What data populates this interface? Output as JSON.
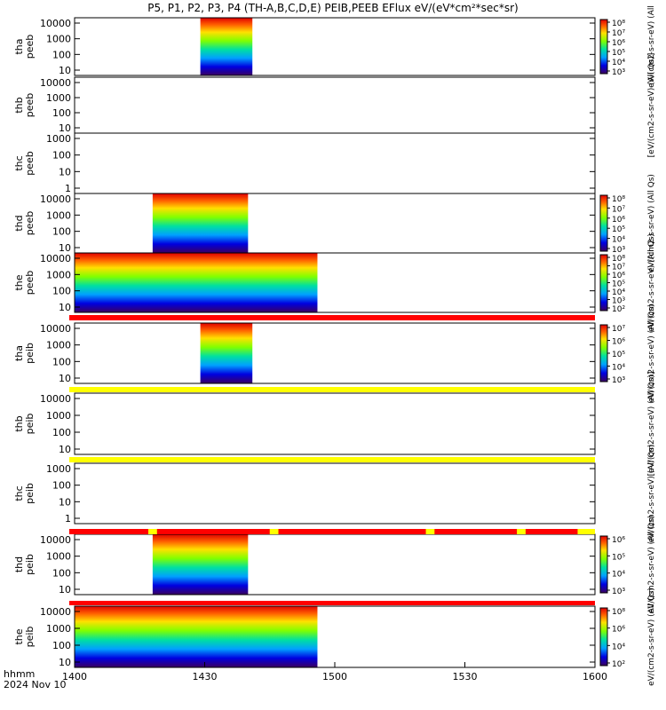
{
  "title": "P5, P1, P2, P3, P4 (TH-A,B,C,D,E) PEIB,PEEB EFlux eV/(eV*cm²*sec*sr)",
  "colors": {
    "background": "#ffffff",
    "flag_red": "#ff0000",
    "flag_yellow": "#ffff00"
  },
  "chart_data": {
    "type": "heatmap",
    "x_axis": {
      "range": [
        "1400",
        "1600"
      ],
      "ticks": [
        "1400",
        "1430",
        "1500",
        "1530",
        "1600"
      ],
      "label_line1": "hhmm",
      "label_line2": "2024 Nov 10"
    },
    "panels": [
      {
        "id": "tha_peeb",
        "ylabel": [
          "tha",
          "peeb"
        ],
        "yticks": [
          "10000",
          "1000",
          "100",
          "10"
        ],
        "coverage": [
          "1429",
          "1441"
        ],
        "colorbar": {
          "label": "eV/(cm2-s-sr-eV) (All",
          "ticks": [
            "10⁸",
            "10⁷",
            "10⁶",
            "10⁵",
            "10⁴",
            "10³"
          ]
        }
      },
      {
        "id": "thb_peeb",
        "ylabel": [
          "thb",
          "peeb"
        ],
        "yticks": [
          "10000",
          "1000",
          "100",
          "10"
        ],
        "coverage": null,
        "colorbar": {
          "label": "[eV/(cm2-s-sr-eV) (All Qs)]",
          "ticks": []
        }
      },
      {
        "id": "thc_peeb",
        "ylabel": [
          "thc",
          "peeb"
        ],
        "yticks": [
          "1000",
          "100",
          "10",
          "1"
        ],
        "coverage": null,
        "colorbar": null
      },
      {
        "id": "thd_peeb",
        "ylabel": [
          "thd",
          "peeb"
        ],
        "yticks": [
          "10000",
          "1000",
          "100",
          "10"
        ],
        "coverage": [
          "1418",
          "1440"
        ],
        "colorbar": {
          "label": "eV/(cm2-s-sr-eV) (All Qs)",
          "ticks": [
            "10⁸",
            "10⁷",
            "10⁶",
            "10⁵",
            "10⁴",
            "10³"
          ]
        }
      },
      {
        "id": "the_peeb",
        "ylabel": [
          "the",
          "peeb"
        ],
        "yticks": [
          "10000",
          "1000",
          "100",
          "10"
        ],
        "coverage": [
          "1400",
          "1456"
        ],
        "colorbar": {
          "label": "eV/(cm2-s-sr-eV) (All Qs)",
          "ticks": [
            "10⁸",
            "10⁷",
            "10⁶",
            "10⁵",
            "10⁴",
            "10³",
            "10²"
          ]
        }
      },
      {
        "id": "tha_peib",
        "ylabel": [
          "tha",
          "peib"
        ],
        "yticks": [
          "10000",
          "1000",
          "100",
          "10"
        ],
        "coverage": [
          "1429",
          "1441"
        ],
        "colorbar": {
          "label": "eV/(cm2-s-sr-eV) (All Qs)",
          "ticks": [
            "10⁷",
            "10⁶",
            "10⁵",
            "10⁴",
            "10³"
          ]
        }
      },
      {
        "id": "thb_peib",
        "ylabel": [
          "thb",
          "peib"
        ],
        "yticks": [
          "10000",
          "1000",
          "100",
          "10"
        ],
        "coverage": null,
        "colorbar": {
          "label": "[eV/(cm2-s-sr-eV) (All Qs)]",
          "ticks": []
        }
      },
      {
        "id": "thc_peib",
        "ylabel": [
          "thc",
          "peib"
        ],
        "yticks": [
          "1000",
          "100",
          "10",
          "1"
        ],
        "coverage": null,
        "colorbar": {
          "label": "eV/(cm2-s-sr-eV) (All Qs)",
          "ticks": []
        }
      },
      {
        "id": "thd_peib",
        "ylabel": [
          "thd",
          "peib"
        ],
        "yticks": [
          "10000",
          "1000",
          "100",
          "10"
        ],
        "coverage": [
          "1418",
          "1440"
        ],
        "colorbar": {
          "label": "eV/(cm2-s-sr-eV) (All Qs)",
          "ticks": [
            "10⁶",
            "10⁵",
            "10⁴",
            "10³"
          ]
        }
      },
      {
        "id": "the_peib",
        "ylabel": [
          "the",
          "peib"
        ],
        "yticks": [
          "10000",
          "1000",
          "100",
          "10"
        ],
        "coverage": [
          "1400",
          "1456"
        ],
        "colorbar": {
          "label": "eV/(cm2-s-sr-eV) (All Qs)",
          "ticks": [
            "10⁸",
            "10⁶",
            "10⁴",
            "10²"
          ]
        }
      }
    ],
    "flag_bars": [
      {
        "after_panel": "the_peeb",
        "color": "red"
      },
      {
        "after_panel": "tha_peib",
        "color": "yellow"
      },
      {
        "after_panel": "thb_peib",
        "color": "yellow"
      },
      {
        "after_panel": "thc_peib",
        "color": "red",
        "yellow_gaps": [
          [
            "1417",
            "1419"
          ],
          [
            "1445",
            "1447"
          ],
          [
            "1521",
            "1523"
          ],
          [
            "1542",
            "1544"
          ],
          [
            "1556",
            "1600"
          ]
        ]
      },
      {
        "after_panel": "thd_peib",
        "color": "red"
      }
    ]
  }
}
